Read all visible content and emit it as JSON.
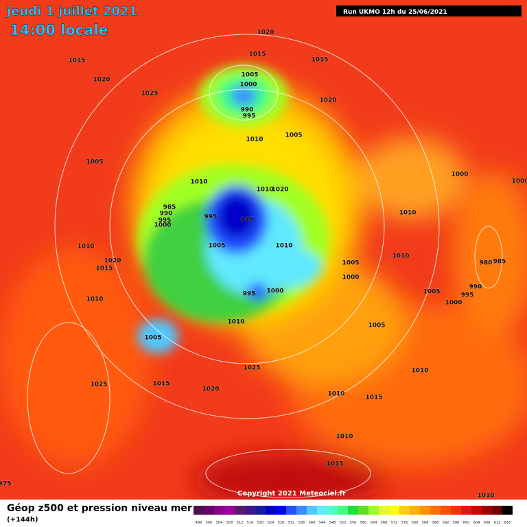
{
  "header": {
    "date": "jeudi 1 juillet 2021",
    "time": "14:00 locale",
    "run": "Run UKMO 12h du 25/06/2021"
  },
  "copyright": "Copyright 2021 Meteociel.fr",
  "footer": {
    "title": "Géop z500 et pression niveau mer",
    "subtitle": "(+144h)"
  },
  "isobars": [
    1020,
    1015,
    1015,
    1015,
    1020,
    1025,
    1005,
    1000,
    990,
    995,
    1020,
    1010,
    1005,
    1005,
    1000,
    1010,
    1010,
    1020,
    985,
    990,
    995,
    1000,
    995,
    995,
    1010,
    1005,
    1010,
    1010,
    1020,
    1015,
    1010,
    1005,
    980,
    985,
    1000,
    990,
    995,
    1005,
    1000,
    995,
    1000,
    1010,
    1010,
    1005,
    1005,
    1025,
    1010,
    1025,
    1015,
    1020,
    1010,
    1015,
    1010,
    1015,
    1010,
    975,
    1000
  ],
  "legend": {
    "values": [
      496,
      500,
      504,
      508,
      512,
      516,
      520,
      524,
      528,
      532,
      536,
      540,
      544,
      548,
      552,
      556,
      560,
      564,
      568,
      572,
      576,
      580,
      584,
      588,
      592,
      596,
      600,
      604,
      608,
      612,
      616
    ],
    "colors": [
      "#4b0f4b",
      "#6a006a",
      "#8a008a",
      "#a000a0",
      "#5a1a6a",
      "#3a1a8a",
      "#1a1aa0",
      "#0000c8",
      "#0000ff",
      "#2050ff",
      "#3c8cff",
      "#50c8ff",
      "#60e8ff",
      "#50ffc8",
      "#40ff80",
      "#20e040",
      "#60e020",
      "#a0ff20",
      "#e0ff20",
      "#ffff00",
      "#ffd000",
      "#ffb000",
      "#ff9000",
      "#ff7000",
      "#ff5000",
      "#ff3000",
      "#f01010",
      "#d00000",
      "#a00000",
      "#700000",
      "#000000"
    ]
  }
}
